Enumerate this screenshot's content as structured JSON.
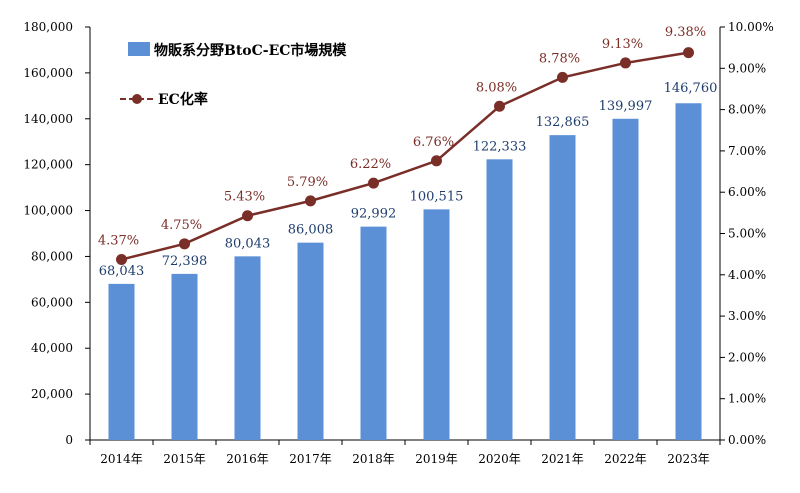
{
  "chart_data": {
    "type": "bar",
    "categories": [
      "2014年",
      "2015年",
      "2016年",
      "2017年",
      "2018年",
      "2019年",
      "2020年",
      "2021年",
      "2022年",
      "2023年"
    ],
    "series": [
      {
        "name": "物販系分野BtoC-EC市場規模",
        "type": "bar",
        "axis": "left",
        "values": [
          68043,
          72398,
          80043,
          86008,
          92992,
          100515,
          122333,
          132865,
          139997,
          146760
        ],
        "value_labels": [
          "68,043",
          "72,398",
          "80,043",
          "86,008",
          "92,992",
          "100,515",
          "122,333",
          "132,865",
          "139,997",
          "146,760"
        ],
        "color": "#5b8fd6"
      },
      {
        "name": "EC化率",
        "type": "line",
        "axis": "right",
        "values": [
          4.37,
          4.75,
          5.43,
          5.79,
          6.22,
          6.76,
          8.08,
          8.78,
          9.13,
          9.38
        ],
        "value_labels": [
          "4.37%",
          "4.75%",
          "5.43%",
          "5.79%",
          "6.22%",
          "6.76%",
          "8.08%",
          "8.78%",
          "9.13%",
          "9.38%"
        ],
        "color": "#7a2e28"
      }
    ],
    "y_left": {
      "lim": [
        0,
        180000
      ],
      "ticks": [
        0,
        20000,
        40000,
        60000,
        80000,
        100000,
        120000,
        140000,
        160000,
        180000
      ],
      "tick_labels": [
        "0",
        "20,000",
        "40,000",
        "60,000",
        "80,000",
        "100,000",
        "120,000",
        "140,000",
        "160,000",
        "180,000"
      ]
    },
    "y_right": {
      "lim": [
        0,
        10
      ],
      "ticks": [
        0,
        1,
        2,
        3,
        4,
        5,
        6,
        7,
        8,
        9,
        10
      ],
      "tick_labels": [
        "0.00%",
        "1.00%",
        "2.00%",
        "3.00%",
        "4.00%",
        "5.00%",
        "6.00%",
        "7.00%",
        "8.00%",
        "9.00%",
        "10.00%"
      ]
    },
    "legend": {
      "position": "top-left",
      "entries": [
        "物販系分野BtoC-EC市場規模",
        "EC化率"
      ]
    },
    "grid": false
  }
}
